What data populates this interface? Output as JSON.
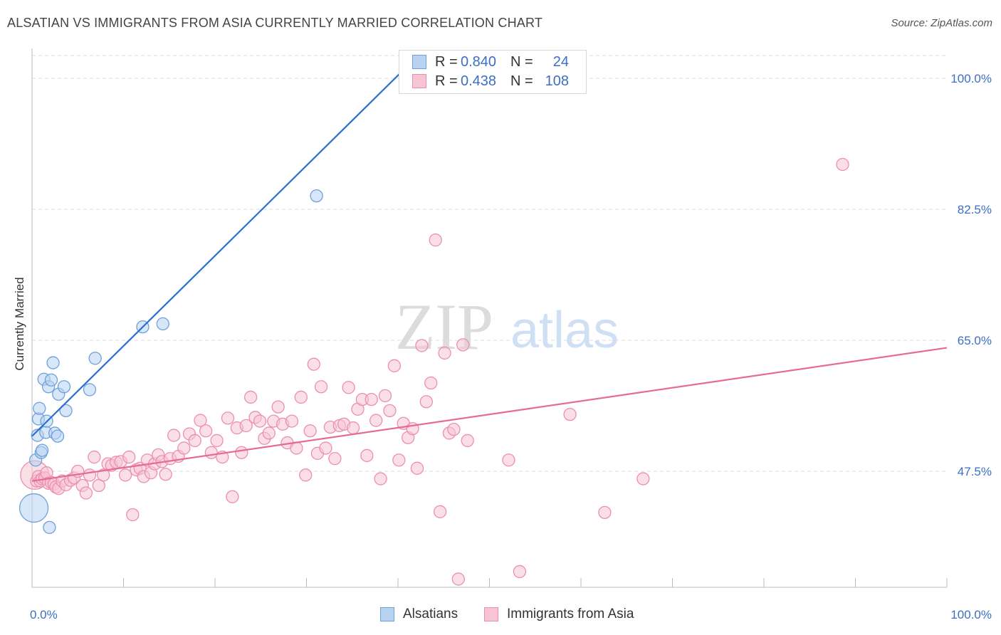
{
  "title": "ALSATIAN VS IMMIGRANTS FROM ASIA CURRENTLY MARRIED CORRELATION CHART",
  "source": "Source: ZipAtlas.com",
  "watermark": {
    "zip": "ZIP",
    "atlas": "atlas"
  },
  "legend": {
    "series1": {
      "r_label": "R =",
      "r_value": "0.840",
      "n_label": "N =",
      "n_value": "24"
    },
    "series2": {
      "r_label": "R =",
      "r_value": "0.438",
      "n_label": "N =",
      "n_value": "108"
    }
  },
  "colors": {
    "blue_fill": "#b8d3f2",
    "blue_stroke": "#6fa0dc",
    "blue_line": "#2a6fcf",
    "pink_fill": "#f7c4d4",
    "pink_stroke": "#eb8fb0",
    "pink_line": "#e56b97",
    "axis_text": "#3a6fc4",
    "grid": "#dddddd"
  },
  "chart_data": {
    "type": "scatter",
    "title": "ALSATIAN VS IMMIGRANTS FROM ASIA CURRENTLY MARRIED CORRELATION CHART",
    "xlabel": "",
    "ylabel": "Currently Married",
    "xlim": [
      0,
      100
    ],
    "ylim": [
      32,
      104
    ],
    "x_tick_labels": [
      "0.0%",
      "100.0%"
    ],
    "y_ticks": [
      47.5,
      65.0,
      82.5,
      100.0
    ],
    "y_tick_labels": [
      "47.5%",
      "65.0%",
      "82.5%",
      "100.0%"
    ],
    "series": [
      {
        "name": "Alsatians",
        "color": "#6fa0dc",
        "r": 0.84,
        "n": 24,
        "trend": {
          "x": [
            0,
            40.5
          ],
          "y": [
            52.2,
            101.0
          ]
        },
        "points": [
          {
            "x": 0.2,
            "y": 42.6,
            "big": true
          },
          {
            "x": 0.4,
            "y": 49.0
          },
          {
            "x": 0.6,
            "y": 52.3
          },
          {
            "x": 0.7,
            "y": 54.5
          },
          {
            "x": 0.8,
            "y": 55.9
          },
          {
            "x": 1.0,
            "y": 50.0
          },
          {
            "x": 1.1,
            "y": 50.3
          },
          {
            "x": 1.3,
            "y": 59.8
          },
          {
            "x": 1.5,
            "y": 52.7
          },
          {
            "x": 1.6,
            "y": 54.2
          },
          {
            "x": 1.8,
            "y": 58.8
          },
          {
            "x": 1.9,
            "y": 40.0
          },
          {
            "x": 2.1,
            "y": 59.7
          },
          {
            "x": 2.3,
            "y": 62.0
          },
          {
            "x": 2.5,
            "y": 52.6
          },
          {
            "x": 2.8,
            "y": 52.2
          },
          {
            "x": 2.9,
            "y": 57.8
          },
          {
            "x": 3.5,
            "y": 58.8
          },
          {
            "x": 3.7,
            "y": 55.6
          },
          {
            "x": 6.3,
            "y": 58.4
          },
          {
            "x": 6.9,
            "y": 62.6
          },
          {
            "x": 12.1,
            "y": 66.8
          },
          {
            "x": 14.3,
            "y": 67.2
          },
          {
            "x": 31.1,
            "y": 84.3
          }
        ]
      },
      {
        "name": "Immigrants from Asia",
        "color": "#eb8fb0",
        "r": 0.438,
        "n": 108,
        "trend": {
          "x": [
            0,
            100
          ],
          "y": [
            46.2,
            64.0
          ]
        },
        "points": [
          {
            "x": 0.3,
            "y": 47.0,
            "big": true
          },
          {
            "x": 0.5,
            "y": 46.2
          },
          {
            "x": 0.7,
            "y": 46.8
          },
          {
            "x": 0.9,
            "y": 46.2
          },
          {
            "x": 1.1,
            "y": 46.5
          },
          {
            "x": 1.4,
            "y": 46.6
          },
          {
            "x": 1.6,
            "y": 47.3
          },
          {
            "x": 1.8,
            "y": 45.9
          },
          {
            "x": 2.1,
            "y": 46.0
          },
          {
            "x": 2.4,
            "y": 45.8
          },
          {
            "x": 2.6,
            "y": 45.4
          },
          {
            "x": 2.9,
            "y": 45.2
          },
          {
            "x": 3.3,
            "y": 46.2
          },
          {
            "x": 3.7,
            "y": 45.7
          },
          {
            "x": 4.2,
            "y": 46.3
          },
          {
            "x": 4.6,
            "y": 46.6
          },
          {
            "x": 5.0,
            "y": 47.5
          },
          {
            "x": 5.5,
            "y": 45.6
          },
          {
            "x": 5.9,
            "y": 44.6
          },
          {
            "x": 6.3,
            "y": 47.0
          },
          {
            "x": 6.8,
            "y": 49.4
          },
          {
            "x": 7.3,
            "y": 45.6
          },
          {
            "x": 7.8,
            "y": 47.0
          },
          {
            "x": 8.3,
            "y": 48.5
          },
          {
            "x": 8.7,
            "y": 48.3
          },
          {
            "x": 9.2,
            "y": 48.7
          },
          {
            "x": 9.7,
            "y": 48.8
          },
          {
            "x": 10.2,
            "y": 47.0
          },
          {
            "x": 10.6,
            "y": 49.4
          },
          {
            "x": 11.0,
            "y": 41.7
          },
          {
            "x": 11.4,
            "y": 47.7
          },
          {
            "x": 11.8,
            "y": 47.9
          },
          {
            "x": 12.2,
            "y": 46.8
          },
          {
            "x": 12.6,
            "y": 49.0
          },
          {
            "x": 13.0,
            "y": 47.3
          },
          {
            "x": 13.4,
            "y": 48.5
          },
          {
            "x": 13.8,
            "y": 49.7
          },
          {
            "x": 14.2,
            "y": 48.8
          },
          {
            "x": 14.6,
            "y": 47.1
          },
          {
            "x": 15.1,
            "y": 49.2
          },
          {
            "x": 15.5,
            "y": 52.3
          },
          {
            "x": 16.0,
            "y": 49.5
          },
          {
            "x": 16.6,
            "y": 50.6
          },
          {
            "x": 17.2,
            "y": 52.5
          },
          {
            "x": 17.8,
            "y": 51.6
          },
          {
            "x": 18.4,
            "y": 54.3
          },
          {
            "x": 19.0,
            "y": 52.9
          },
          {
            "x": 19.6,
            "y": 50.0
          },
          {
            "x": 20.2,
            "y": 51.6
          },
          {
            "x": 20.8,
            "y": 49.4
          },
          {
            "x": 21.4,
            "y": 54.6
          },
          {
            "x": 21.9,
            "y": 44.1
          },
          {
            "x": 22.4,
            "y": 53.3
          },
          {
            "x": 22.9,
            "y": 50.0
          },
          {
            "x": 23.4,
            "y": 53.6
          },
          {
            "x": 23.9,
            "y": 57.4
          },
          {
            "x": 24.4,
            "y": 54.7
          },
          {
            "x": 24.9,
            "y": 54.2
          },
          {
            "x": 25.4,
            "y": 51.9
          },
          {
            "x": 25.9,
            "y": 52.6
          },
          {
            "x": 26.4,
            "y": 54.2
          },
          {
            "x": 26.9,
            "y": 56.1
          },
          {
            "x": 27.4,
            "y": 53.8
          },
          {
            "x": 27.9,
            "y": 51.3
          },
          {
            "x": 28.4,
            "y": 54.2
          },
          {
            "x": 28.9,
            "y": 50.6
          },
          {
            "x": 29.4,
            "y": 57.4
          },
          {
            "x": 29.9,
            "y": 47.0
          },
          {
            "x": 30.4,
            "y": 52.9
          },
          {
            "x": 30.8,
            "y": 61.8
          },
          {
            "x": 31.2,
            "y": 49.9
          },
          {
            "x": 31.6,
            "y": 58.8
          },
          {
            "x": 32.1,
            "y": 50.6
          },
          {
            "x": 32.6,
            "y": 53.4
          },
          {
            "x": 33.1,
            "y": 49.2
          },
          {
            "x": 33.6,
            "y": 53.6
          },
          {
            "x": 34.1,
            "y": 53.8
          },
          {
            "x": 34.6,
            "y": 58.7
          },
          {
            "x": 35.1,
            "y": 53.3
          },
          {
            "x": 35.6,
            "y": 55.8
          },
          {
            "x": 36.1,
            "y": 57.1
          },
          {
            "x": 36.6,
            "y": 49.6
          },
          {
            "x": 37.1,
            "y": 57.1
          },
          {
            "x": 37.6,
            "y": 54.3
          },
          {
            "x": 38.1,
            "y": 46.5
          },
          {
            "x": 38.6,
            "y": 57.6
          },
          {
            "x": 39.1,
            "y": 55.6
          },
          {
            "x": 39.6,
            "y": 61.6
          },
          {
            "x": 40.1,
            "y": 49.0
          },
          {
            "x": 40.6,
            "y": 53.9
          },
          {
            "x": 41.1,
            "y": 52.0
          },
          {
            "x": 41.6,
            "y": 53.2
          },
          {
            "x": 42.1,
            "y": 47.9
          },
          {
            "x": 42.6,
            "y": 64.3
          },
          {
            "x": 43.1,
            "y": 56.8
          },
          {
            "x": 43.6,
            "y": 59.3
          },
          {
            "x": 44.1,
            "y": 78.4
          },
          {
            "x": 44.6,
            "y": 42.1
          },
          {
            "x": 45.1,
            "y": 63.3
          },
          {
            "x": 45.6,
            "y": 52.6
          },
          {
            "x": 46.1,
            "y": 53.1
          },
          {
            "x": 46.6,
            "y": 33.1
          },
          {
            "x": 47.1,
            "y": 64.4
          },
          {
            "x": 47.6,
            "y": 51.6
          },
          {
            "x": 52.1,
            "y": 49.0
          },
          {
            "x": 53.3,
            "y": 34.1
          },
          {
            "x": 58.8,
            "y": 55.1
          },
          {
            "x": 62.6,
            "y": 42.0
          },
          {
            "x": 66.8,
            "y": 46.5
          },
          {
            "x": 88.6,
            "y": 88.5
          }
        ]
      }
    ]
  }
}
